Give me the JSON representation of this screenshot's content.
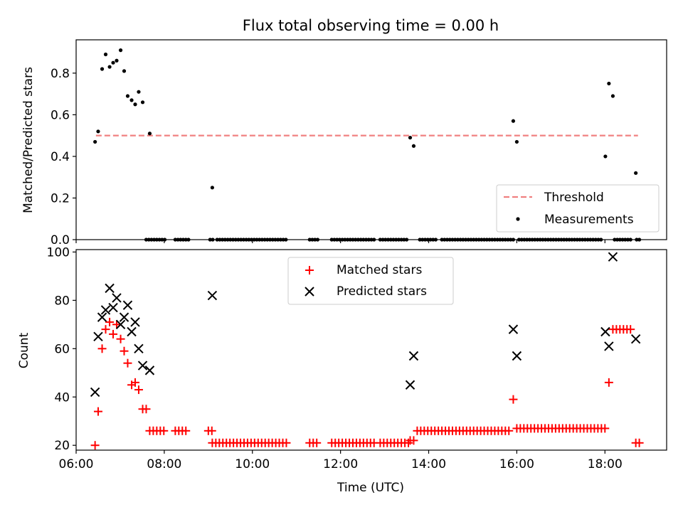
{
  "figure": {
    "title": "Flux total observing time = 0.00 h"
  },
  "chart_data": [
    {
      "type": "scatter",
      "ylabel": "Matched/Predicted stars",
      "xlabel": "",
      "xlim": [
        6.0,
        19.4
      ],
      "ylim": [
        0.0,
        0.96
      ],
      "yticks": [
        0.0,
        0.2,
        0.4,
        0.6,
        0.8
      ],
      "ytick_labels": [
        "0.0",
        "0.2",
        "0.4",
        "0.6",
        "0.8"
      ],
      "xticks": [
        6,
        8,
        10,
        12,
        14,
        16,
        18
      ],
      "grid": false,
      "legend_position": "lower-right",
      "legend": [
        {
          "label": "Threshold",
          "style": "dashed-line",
          "color": "#f08080"
        },
        {
          "label": "Measurements",
          "style": "dot",
          "color": "#000000"
        }
      ],
      "threshold": {
        "name": "Threshold",
        "value": 0.5,
        "x_range": [
          6.45,
          18.75
        ],
        "color": "#f08080"
      },
      "measurements": {
        "name": "Measurements",
        "color": "#000000",
        "points": [
          [
            6.43,
            0.47
          ],
          [
            6.5,
            0.52
          ],
          [
            6.59,
            0.82
          ],
          [
            6.67,
            0.89
          ],
          [
            6.76,
            0.83
          ],
          [
            6.84,
            0.85
          ],
          [
            6.92,
            0.86
          ],
          [
            7.01,
            0.91
          ],
          [
            7.09,
            0.81
          ],
          [
            7.17,
            0.69
          ],
          [
            7.26,
            0.67
          ],
          [
            7.34,
            0.65
          ],
          [
            7.42,
            0.71
          ],
          [
            7.51,
            0.66
          ],
          [
            7.67,
            0.51
          ],
          [
            9.09,
            0.25
          ],
          [
            13.58,
            0.49
          ],
          [
            13.66,
            0.45
          ],
          [
            15.92,
            0.57
          ],
          [
            16.0,
            0.47
          ],
          [
            18.01,
            0.4
          ],
          [
            18.09,
            0.75
          ],
          [
            18.18,
            0.69
          ],
          [
            18.7,
            0.32
          ]
        ],
        "zero_ranges": [
          [
            7.59,
            8.03
          ],
          [
            8.25,
            8.55
          ],
          [
            9.04,
            9.1
          ],
          [
            9.2,
            10.8
          ],
          [
            11.3,
            11.5
          ],
          [
            11.8,
            12.8
          ],
          [
            12.9,
            13.55
          ],
          [
            13.8,
            14.2
          ],
          [
            14.3,
            15.95
          ],
          [
            16.05,
            17.95
          ],
          [
            18.22,
            18.62
          ],
          [
            18.72,
            18.8
          ]
        ]
      }
    },
    {
      "type": "scatter",
      "ylabel": "Count",
      "xlabel": "Time (UTC)",
      "xlim": [
        6.0,
        19.4
      ],
      "ylim": [
        18,
        101
      ],
      "yticks": [
        20,
        40,
        60,
        80,
        100
      ],
      "ytick_labels": [
        "20",
        "40",
        "60",
        "80",
        "100"
      ],
      "xticks": [
        6,
        8,
        10,
        12,
        14,
        16,
        18
      ],
      "xtick_labels": [
        "06:00",
        "08:00",
        "10:00",
        "12:00",
        "14:00",
        "16:00",
        "18:00"
      ],
      "grid": false,
      "legend_position": "upper-center",
      "series": [
        {
          "name": "Matched stars",
          "marker": "plus",
          "color": "#ff0000",
          "points": [
            [
              6.43,
              20
            ],
            [
              6.5,
              34
            ],
            [
              6.59,
              60
            ],
            [
              6.67,
              68
            ],
            [
              6.76,
              71
            ],
            [
              6.84,
              66
            ],
            [
              6.92,
              70
            ],
            [
              7.01,
              64
            ],
            [
              7.09,
              59
            ],
            [
              7.17,
              54
            ],
            [
              7.26,
              45
            ],
            [
              7.34,
              46
            ],
            [
              7.42,
              43
            ],
            [
              7.51,
              35
            ],
            [
              7.59,
              35
            ],
            [
              15.92,
              39
            ],
            [
              18.09,
              46
            ]
          ],
          "runs": [
            {
              "from": 7.67,
              "to": 8.03,
              "value": 26
            },
            {
              "from": 8.25,
              "to": 8.55,
              "value": 26
            },
            {
              "from": 9.0,
              "to": 9.1,
              "value": 26
            },
            {
              "from": 9.09,
              "to": 10.8,
              "value": 21
            },
            {
              "from": 11.3,
              "to": 11.5,
              "value": 21
            },
            {
              "from": 11.8,
              "to": 12.8,
              "value": 21
            },
            {
              "from": 12.9,
              "to": 13.55,
              "value": 21
            },
            {
              "from": 13.58,
              "to": 13.66,
              "value": 22
            },
            {
              "from": 13.74,
              "to": 15.84,
              "value": 26
            },
            {
              "from": 16.0,
              "to": 18.0,
              "value": 27
            },
            {
              "from": 18.18,
              "to": 18.62,
              "value": 68
            },
            {
              "from": 18.7,
              "to": 18.8,
              "value": 21
            }
          ]
        },
        {
          "name": "Predicted stars",
          "marker": "x",
          "color": "#000000",
          "points": [
            [
              6.43,
              42
            ],
            [
              6.5,
              65
            ],
            [
              6.59,
              73
            ],
            [
              6.67,
              76
            ],
            [
              6.76,
              85
            ],
            [
              6.84,
              77
            ],
            [
              6.92,
              81
            ],
            [
              7.01,
              70
            ],
            [
              7.09,
              73
            ],
            [
              7.17,
              78
            ],
            [
              7.26,
              67
            ],
            [
              7.34,
              71
            ],
            [
              7.42,
              60
            ],
            [
              7.51,
              53
            ],
            [
              7.67,
              51
            ],
            [
              9.09,
              82
            ],
            [
              13.58,
              45
            ],
            [
              13.66,
              57
            ],
            [
              15.92,
              68
            ],
            [
              16.0,
              57
            ],
            [
              18.01,
              67
            ],
            [
              18.09,
              61
            ],
            [
              18.18,
              98
            ],
            [
              18.7,
              64
            ]
          ]
        }
      ]
    }
  ]
}
